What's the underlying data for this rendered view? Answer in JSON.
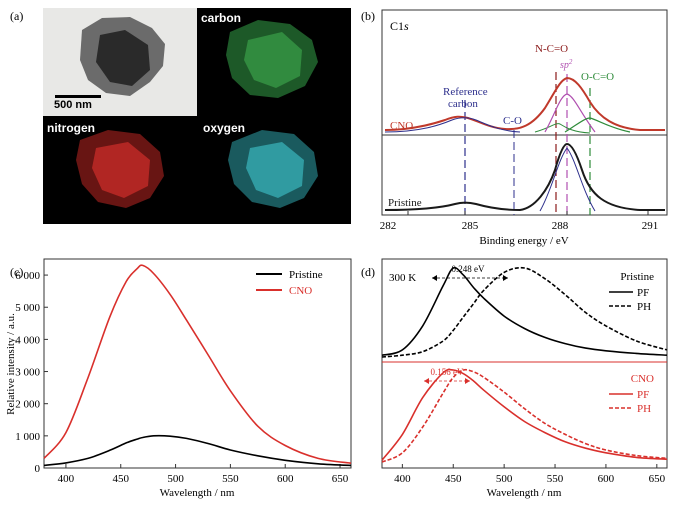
{
  "figure": {
    "panel_a": {
      "label": "(a)",
      "scale_bar": "500 nm",
      "maps": [
        {
          "name": "tem",
          "label": ""
        },
        {
          "name": "carbon",
          "label": "carbon",
          "color": "#3fae4f"
        },
        {
          "name": "nitrogen",
          "label": "nitrogen",
          "color": "#d9302c"
        },
        {
          "name": "oxygen",
          "label": "oxygen",
          "color": "#3fc6cf"
        }
      ]
    },
    "panel_b": {
      "label": "(b)",
      "title_main": "C1",
      "title_italic": "s",
      "xlabel": "Binding energy / eV",
      "xticks": [
        "282",
        "285",
        "288",
        "291"
      ],
      "curve_labels": {
        "cno": "CNO",
        "pristine": "Pristine"
      },
      "peak_labels": {
        "reference_line1": "Reference",
        "reference_line2": "carbon",
        "co": "C-O",
        "nco": "N-C=O",
        "sp2": "sp",
        "sp2_sup": "2",
        "oco": "O-C=O"
      },
      "colors": {
        "cno": "#c0392b",
        "pristine": "#1a1a1a",
        "envelope": "#2d2f8c",
        "sp2": "#b04fb0",
        "oco": "#2e8b3a",
        "ref": "#2d2f8c"
      }
    },
    "panel_c": {
      "label": "(c)",
      "legend": [
        {
          "name": "Pristine",
          "color": "#000000"
        },
        {
          "name": "CNO",
          "color": "#d9302c"
        }
      ]
    },
    "panel_d": {
      "label": "(d)",
      "temperature": "300 K",
      "top_gap": "0.248 eV",
      "bottom_gap": "0.156 eV",
      "top_sample": "Pristine",
      "bottom_sample": "CNO",
      "legend_pf": "PF",
      "legend_ph": "PH",
      "xlabel": "Wavelength / nm",
      "xticks": [
        "400",
        "450",
        "500",
        "550",
        "600",
        "650"
      ]
    }
  },
  "chart_data": [
    {
      "type": "line",
      "panel": "c",
      "xlabel": "Wavelength / nm",
      "ylabel": "Relative intensity / a.u.",
      "xlim": [
        380,
        660
      ],
      "ylim": [
        0,
        6500
      ],
      "xticks": [
        400,
        450,
        500,
        550,
        600,
        650
      ],
      "yticks": [
        0,
        1000,
        2000,
        3000,
        4000,
        5000,
        6000
      ],
      "ytick_labels": [
        "0",
        "1 000",
        "2 000",
        "3 000",
        "4 000",
        "5 000",
        "6 000"
      ],
      "x": [
        380,
        400,
        420,
        440,
        455,
        465,
        470,
        480,
        495,
        510,
        530,
        550,
        575,
        600,
        630,
        660
      ],
      "series": [
        {
          "name": "Pristine",
          "color": "#000000",
          "values": [
            80,
            160,
            300,
            550,
            780,
            900,
            950,
            1000,
            990,
            920,
            760,
            560,
            380,
            240,
            130,
            80
          ]
        },
        {
          "name": "CNO",
          "color": "#d9302c",
          "values": [
            300,
            1100,
            2800,
            4700,
            5800,
            6200,
            6300,
            6050,
            5400,
            4600,
            3500,
            2400,
            1300,
            700,
            300,
            150
          ]
        }
      ],
      "legend": "top-right"
    },
    {
      "type": "line",
      "panel": "b",
      "xlabel": "Binding energy / eV",
      "xlim": [
        282,
        291.5
      ],
      "xticks": [
        282,
        285,
        288,
        291
      ],
      "x": [
        282,
        283,
        284,
        284.5,
        284.9,
        285.5,
        286,
        286.5,
        287,
        287.5,
        287.9,
        288.2,
        288.4,
        288.7,
        289,
        289.5,
        290,
        291
      ],
      "series": [
        {
          "name": "CNO",
          "color": "#c0392b",
          "values": [
            0.02,
            0.08,
            0.3,
            0.42,
            0.45,
            0.35,
            0.22,
            0.2,
            0.3,
            0.62,
            0.92,
            1.0,
            0.98,
            0.85,
            0.6,
            0.3,
            0.12,
            0.03
          ]
        },
        {
          "name": "Pristine",
          "color": "#1a1a1a",
          "values": [
            0.01,
            0.04,
            0.12,
            0.16,
            0.18,
            0.12,
            0.05,
            0.04,
            0.12,
            0.45,
            0.88,
            1.0,
            0.95,
            0.7,
            0.4,
            0.12,
            0.04,
            0.01
          ]
        }
      ]
    },
    {
      "type": "line",
      "panel": "d",
      "xlabel": "Wavelength / nm",
      "xlim": [
        380,
        660
      ],
      "xticks": [
        400,
        450,
        500,
        550,
        600,
        650
      ],
      "x": [
        380,
        400,
        420,
        440,
        450,
        460,
        470,
        480,
        500,
        520,
        540,
        560,
        580,
        600,
        630,
        660
      ],
      "series": [
        {
          "name": "Pristine PF",
          "color": "#000000",
          "dash": "solid",
          "values": [
            0.02,
            0.08,
            0.35,
            0.8,
            1.0,
            0.92,
            0.78,
            0.66,
            0.46,
            0.32,
            0.22,
            0.15,
            0.1,
            0.07,
            0.04,
            0.02
          ]
        },
        {
          "name": "Pristine PH",
          "color": "#000000",
          "dash": "dashed",
          "values": [
            0.0,
            0.02,
            0.06,
            0.18,
            0.3,
            0.45,
            0.6,
            0.75,
            0.95,
            1.0,
            0.88,
            0.7,
            0.5,
            0.35,
            0.18,
            0.08
          ]
        },
        {
          "name": "CNO PF",
          "color": "#d9302c",
          "dash": "solid",
          "values": [
            0.02,
            0.3,
            0.7,
            0.97,
            1.0,
            0.96,
            0.88,
            0.78,
            0.6,
            0.44,
            0.32,
            0.22,
            0.15,
            0.1,
            0.05,
            0.03
          ]
        },
        {
          "name": "CNO PH",
          "color": "#d9302c",
          "dash": "dashed",
          "values": [
            0.0,
            0.1,
            0.38,
            0.75,
            0.92,
            1.0,
            0.98,
            0.92,
            0.76,
            0.58,
            0.42,
            0.3,
            0.2,
            0.13,
            0.07,
            0.04
          ]
        }
      ]
    }
  ]
}
